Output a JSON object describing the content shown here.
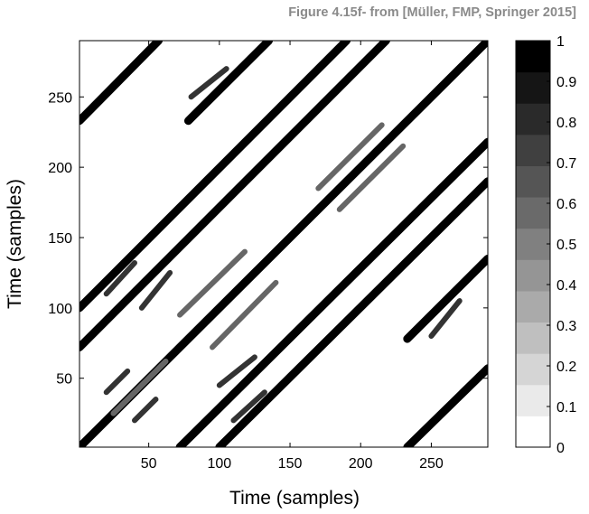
{
  "caption": "Figure 4.15f- from [Müller, FMP, Springer 2015]",
  "chart_data": {
    "type": "heatmap",
    "title": "",
    "xlabel": "Time (samples)",
    "ylabel": "Time (samples)",
    "xlim": [
      1,
      290
    ],
    "ylim": [
      1,
      290
    ],
    "x_ticks": [
      50,
      100,
      150,
      200,
      250
    ],
    "y_ticks": [
      50,
      100,
      150,
      200,
      250
    ],
    "y_direction": "up",
    "colormap": "gray-reversed",
    "colorbar": {
      "range": [
        0,
        1
      ],
      "levels": 13,
      "ticks": [
        0,
        0.1,
        0.2,
        0.3,
        0.4,
        0.5,
        0.6,
        0.7,
        0.8,
        0.9,
        1
      ],
      "tick_labels": [
        "0",
        "0.1",
        "0.2",
        "0.3",
        "0.4",
        "0.5",
        "0.6",
        "0.7",
        "0.8",
        "0.9",
        "1"
      ],
      "placement": "right"
    },
    "paths": [
      {
        "from": [
          1,
          1
        ],
        "to": [
          290,
          290
        ],
        "value": 1
      },
      {
        "from": [
          1,
          72
        ],
        "to": [
          218,
          290
        ],
        "value": 1
      },
      {
        "from": [
          72,
          1
        ],
        "to": [
          290,
          218
        ],
        "value": 1
      },
      {
        "from": [
          1,
          100
        ],
        "to": [
          190,
          290
        ],
        "value": 1
      },
      {
        "from": [
          100,
          1
        ],
        "to": [
          290,
          190
        ],
        "value": 1
      },
      {
        "from": [
          1,
          233
        ],
        "to": [
          57,
          290
        ],
        "value": 1
      },
      {
        "from": [
          233,
          1
        ],
        "to": [
          290,
          57
        ],
        "value": 1
      },
      {
        "from": [
          78,
          233
        ],
        "to": [
          135,
          290
        ],
        "value": 1
      },
      {
        "from": [
          233,
          78
        ],
        "to": [
          290,
          135
        ],
        "value": 1
      },
      {
        "from": [
          25,
          25
        ],
        "to": [
          62,
          62
        ],
        "value": 0.6
      },
      {
        "from": [
          25,
          25
        ],
        "to": [
          62,
          62
        ],
        "value": 0.6
      },
      {
        "from": [
          95,
          72
        ],
        "to": [
          140,
          118
        ],
        "value": 0.6
      },
      {
        "from": [
          72,
          95
        ],
        "to": [
          118,
          140
        ],
        "value": 0.6
      },
      {
        "from": [
          170,
          185
        ],
        "to": [
          215,
          230
        ],
        "value": 0.6
      },
      {
        "from": [
          185,
          170
        ],
        "to": [
          230,
          215
        ],
        "value": 0.6
      },
      {
        "from": [
          20,
          110
        ],
        "to": [
          40,
          132
        ],
        "value": 0.8
      },
      {
        "from": [
          110,
          20
        ],
        "to": [
          132,
          40
        ],
        "value": 0.8
      },
      {
        "from": [
          45,
          100
        ],
        "to": [
          65,
          125
        ],
        "value": 0.8
      },
      {
        "from": [
          100,
          45
        ],
        "to": [
          125,
          65
        ],
        "value": 0.8
      },
      {
        "from": [
          20,
          40
        ],
        "to": [
          35,
          55
        ],
        "value": 0.8
      },
      {
        "from": [
          40,
          20
        ],
        "to": [
          55,
          35
        ],
        "value": 0.8
      },
      {
        "from": [
          80,
          250
        ],
        "to": [
          105,
          270
        ],
        "value": 0.8
      },
      {
        "from": [
          250,
          80
        ],
        "to": [
          270,
          105
        ],
        "value": 0.8
      }
    ]
  }
}
